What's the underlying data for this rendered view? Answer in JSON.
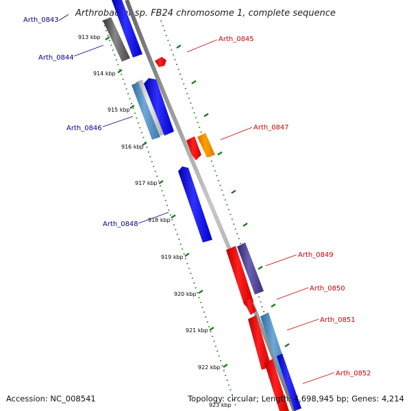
{
  "title": "Arthrobacter sp. FB24 chromosome 1, complete sequence",
  "footer": {
    "accession": "Accession: NC_008541",
    "summary": "Topology: circular; Length: 4,698,945 bp; Genes: 4,214"
  },
  "ticks": [
    "913 kbp",
    "914 kbp",
    "915 kbp",
    "916 kbp",
    "917 kbp",
    "918 kbp",
    "919 kbp",
    "920 kbp",
    "921 kbp",
    "922 kbp",
    "923 kbp"
  ],
  "genes_left": [
    {
      "label": "Arth_0843"
    },
    {
      "label": "Arth_0844"
    },
    {
      "label": "Arth_0846"
    },
    {
      "label": "Arth_0848"
    }
  ],
  "genes_right": [
    {
      "label": "Arth_0845"
    },
    {
      "label": "Arth_0847"
    },
    {
      "label": "Arth_0849"
    },
    {
      "label": "Arth_0850"
    },
    {
      "label": "Arth_0851"
    },
    {
      "label": "Arth_0852"
    }
  ],
  "colors": {
    "minus_strand_label": "#00008b",
    "plus_strand_label": "#cc0000",
    "tick": "#1f7a1f",
    "backbone": "#808080",
    "blue": "#0000ee",
    "red": "#ee0000",
    "orange": "#ff8c00",
    "steelblue": "#4682b4",
    "gray": "#555555",
    "slate": "#483d8b"
  }
}
